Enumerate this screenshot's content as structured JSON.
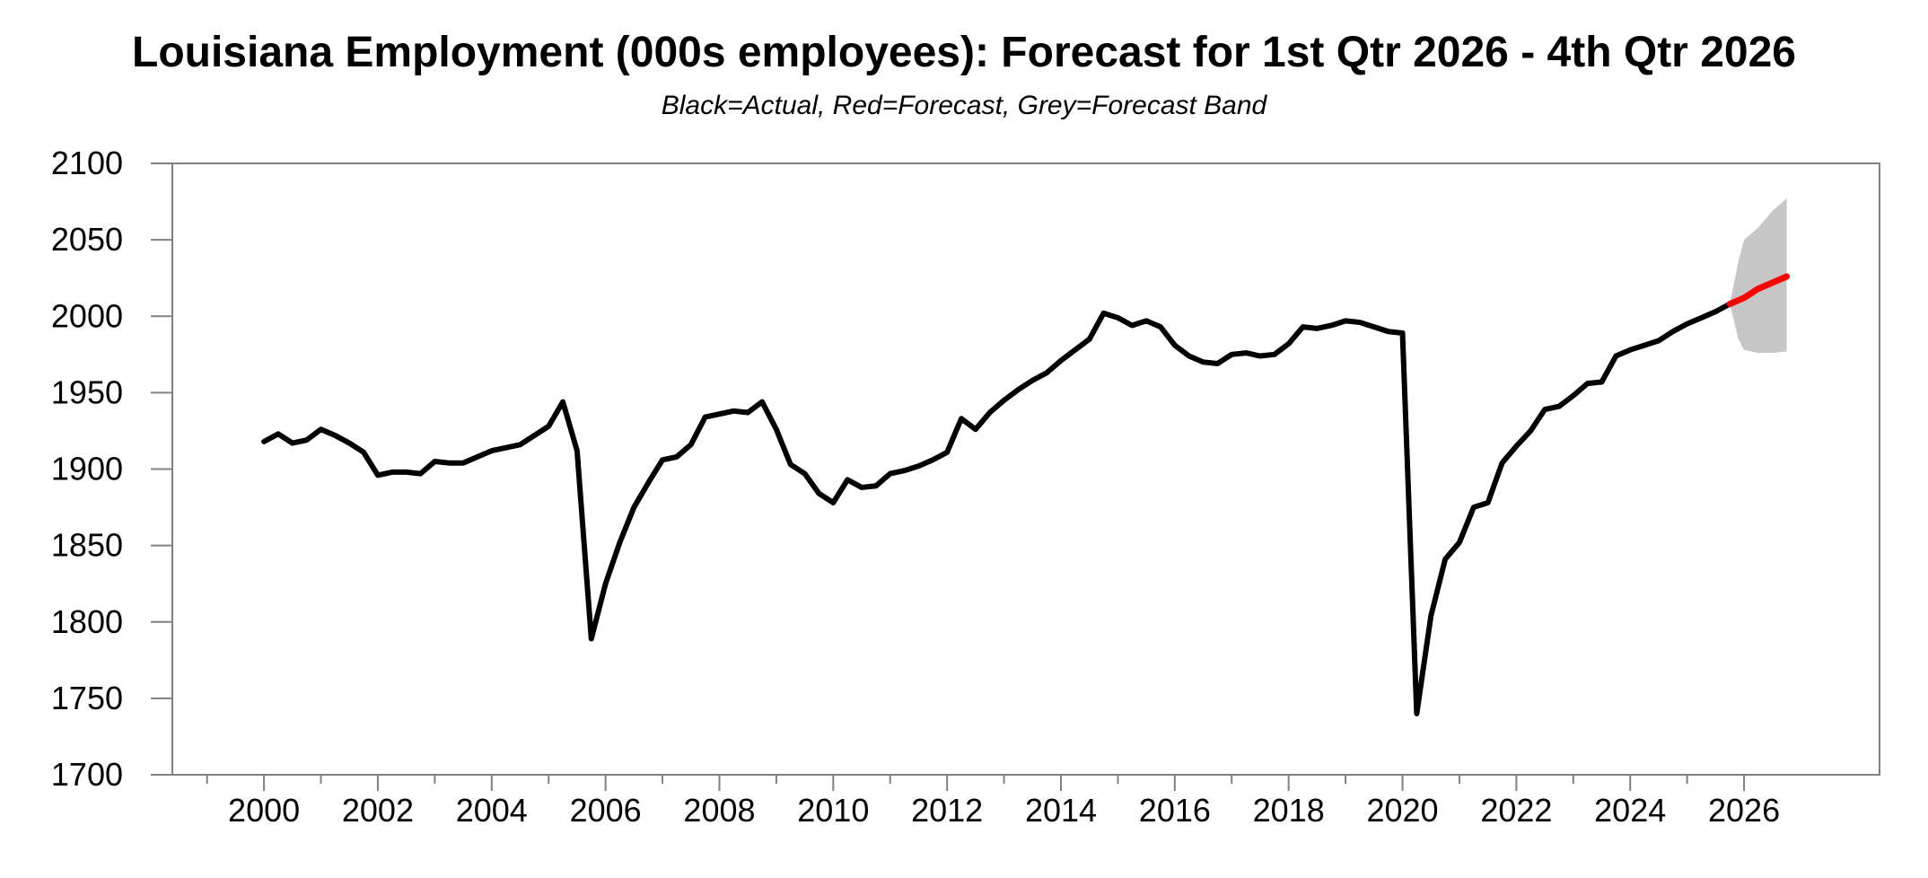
{
  "header": {
    "title": "Louisiana Employment (000s employees): Forecast for 1st Qtr 2026 - 4th Qtr 2026",
    "subtitle": "Black=Actual, Red=Forecast, Grey=Forecast Band"
  },
  "colors": {
    "background": "#ffffff",
    "actual_line": "#000000",
    "forecast_line": "#ff0000",
    "forecast_band": "#c6c6c6",
    "axis_frame": "#808080",
    "text": "#000000"
  },
  "chart_data": {
    "type": "line",
    "title": "Louisiana Employment (000s employees): Forecast for 1st Qtr 2026 - 4th Qtr 2026",
    "subtitle": "Black=Actual, Red=Forecast, Grey=Forecast Band",
    "xlabel": "",
    "ylabel": "",
    "grid": false,
    "legend_position": "none",
    "xlim": [
      1998.39,
      2028.38
    ],
    "ylim": [
      1700,
      2100
    ],
    "yticks": [
      1700,
      1750,
      1800,
      1850,
      1900,
      1950,
      2000,
      2050,
      2100
    ],
    "xticks_major": [
      2000,
      2002,
      2004,
      2006,
      2008,
      2010,
      2012,
      2014,
      2016,
      2018,
      2020,
      2022,
      2024,
      2026
    ],
    "xticks_minor": [
      1999,
      2001,
      2003,
      2005,
      2007,
      2009,
      2011,
      2013,
      2015,
      2017,
      2019,
      2021,
      2023,
      2025
    ],
    "frequency": "quarterly",
    "series": [
      {
        "name": "Actual",
        "role": "actual",
        "x_start": 2000.0,
        "x_step": 0.25,
        "values": [
          1918,
          1923,
          1917,
          1919,
          1926,
          1922,
          1917,
          1911,
          1896,
          1898,
          1898,
          1897,
          1905,
          1904,
          1904,
          1908,
          1912,
          1914,
          1916,
          1922,
          1928,
          1944,
          1912,
          1789,
          1825,
          1852,
          1875,
          1891,
          1906,
          1908,
          1916,
          1934,
          1936,
          1938,
          1937,
          1944,
          1926,
          1903,
          1897,
          1884,
          1878,
          1893,
          1888,
          1889,
          1897,
          1899,
          1902,
          1906,
          1911,
          1933,
          1926,
          1937,
          1945,
          1952,
          1958,
          1963,
          1971,
          1978,
          1985,
          2002,
          1999,
          1994,
          1997,
          1993,
          1981,
          1974,
          1970,
          1969,
          1975,
          1976,
          1974,
          1975,
          1982,
          1993,
          1992,
          1994,
          1997,
          1996,
          1993,
          1990,
          1989,
          1740,
          1804,
          1841,
          1852,
          1875,
          1878,
          1904,
          1915,
          1925,
          1939,
          1941,
          1948,
          1956,
          1957,
          1974,
          1978,
          1981,
          1984,
          1990,
          1995,
          1999,
          2003,
          2008
        ]
      },
      {
        "name": "Forecast",
        "role": "forecast",
        "x": [
          2025.75,
          2026.0,
          2026.25,
          2026.5,
          2026.75
        ],
        "values": [
          2008,
          2012,
          2018,
          2022,
          2026
        ]
      },
      {
        "name": "Forecast Band",
        "role": "band",
        "x": [
          2025.75,
          2025.9,
          2026.0,
          2026.25,
          2026.5,
          2026.75
        ],
        "lower": [
          2008,
          1985,
          1978,
          1976,
          1976,
          1977
        ],
        "upper": [
          2008,
          2036,
          2050,
          2058,
          2069,
          2077
        ]
      }
    ]
  }
}
